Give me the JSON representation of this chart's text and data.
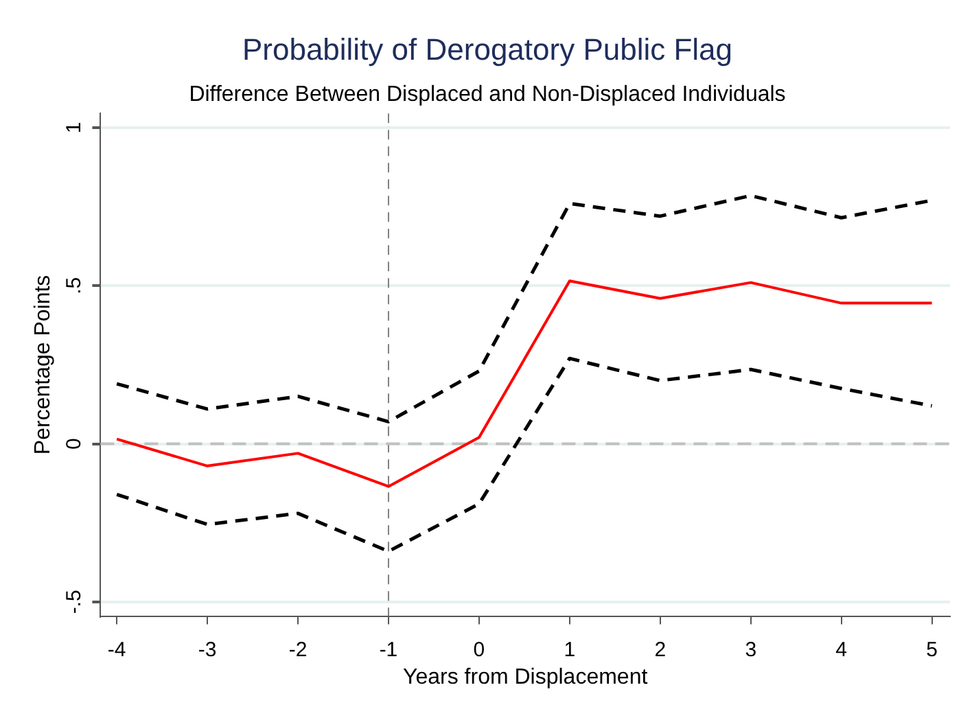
{
  "chart_data": {
    "type": "line",
    "title": "Probability of Derogatory Public Flag",
    "subtitle": "Difference Between Displaced and Non-Displaced Individuals",
    "xlabel": "Years from Displacement",
    "ylabel": "Percentage Points",
    "x": [
      -4,
      -3,
      -2,
      -1,
      0,
      1,
      2,
      3,
      4,
      5
    ],
    "series": [
      {
        "color": "#000000",
        "line_style": "dashed",
        "values": [
          0.19,
          0.11,
          0.15,
          0.07,
          0.23,
          0.76,
          0.72,
          0.785,
          0.715,
          0.77
        ]
      },
      {
        "color": "#ff0000",
        "line_style": "solid",
        "values": [
          0.015,
          -0.07,
          -0.03,
          -0.135,
          0.02,
          0.515,
          0.46,
          0.51,
          0.445,
          0.445
        ]
      },
      {
        "color": "#000000",
        "line_style": "dashed",
        "values": [
          -0.16,
          -0.255,
          -0.22,
          -0.34,
          -0.19,
          0.27,
          0.2,
          0.235,
          0.175,
          0.12
        ]
      }
    ],
    "xlim": [
      -4.18,
      5.2
    ],
    "xticks": [
      -4,
      -3,
      -2,
      -1,
      0,
      1,
      2,
      3,
      4,
      5
    ],
    "ylim": [
      -0.545,
      1.045
    ],
    "yticks": [
      {
        "value": -0.5,
        "label": "-.5"
      },
      0,
      {
        "value": 0.5,
        "label": ".5"
      },
      1
    ],
    "grid": "y",
    "legend": false,
    "marker": "none",
    "ref_lines": [
      {
        "axis": "x",
        "value": -1,
        "color": "#808080",
        "line_style": "dashed"
      },
      {
        "axis": "y",
        "value": 0,
        "color": "#c0c0c0",
        "line_style": "dashed"
      }
    ]
  }
}
